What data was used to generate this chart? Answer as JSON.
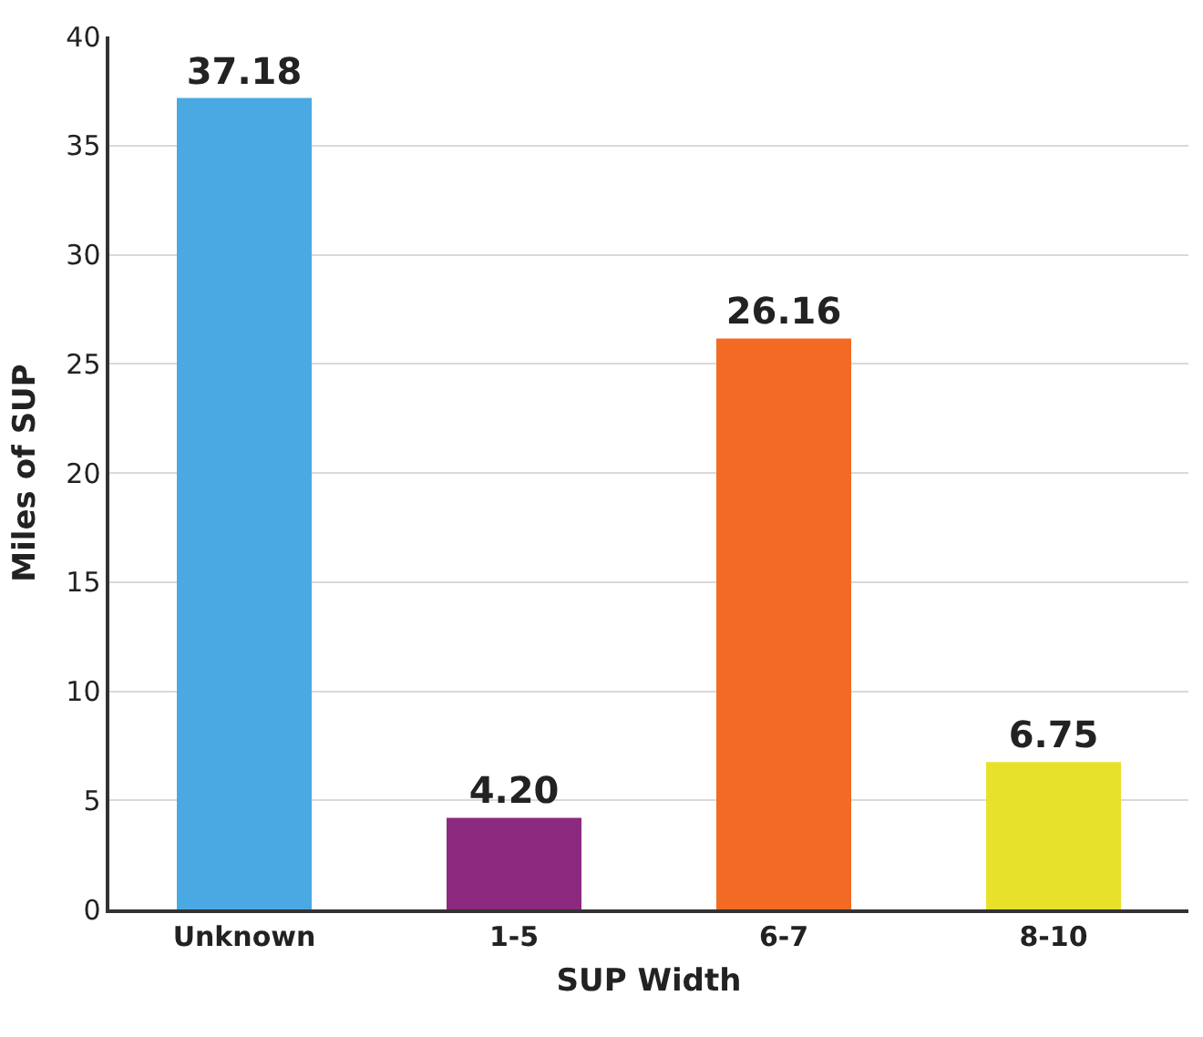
{
  "chart_data": {
    "type": "bar",
    "xlabel": "SUP Width",
    "ylabel": "Miles of SUP",
    "categories": [
      "Unknown",
      "1-5",
      "6-7",
      "8-10"
    ],
    "values": [
      37.18,
      4.2,
      26.16,
      6.75
    ],
    "colors": [
      "#4aa9e2",
      "#8b2a7f",
      "#f26a24",
      "#e8e12c"
    ],
    "value_labels": [
      "37.18",
      "4.20",
      "26.16",
      "6.75"
    ],
    "ylim": [
      0,
      40
    ],
    "yticks": [
      0,
      5,
      10,
      15,
      20,
      25,
      30,
      35,
      40
    ],
    "grid": "y"
  }
}
